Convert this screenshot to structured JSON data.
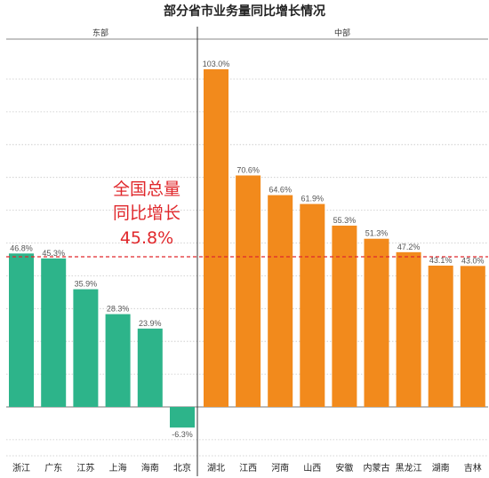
{
  "chart_data": {
    "type": "bar",
    "title": "部分省市业务量同比增长情况",
    "unit": "%",
    "ylim": [
      -10,
      110
    ],
    "grid": true,
    "groups": [
      {
        "name": "东部",
        "categories": [
          "浙江",
          "广东",
          "江苏",
          "上海",
          "海南",
          "北京"
        ],
        "values": [
          46.8,
          45.3,
          35.9,
          28.3,
          23.9,
          -6.3
        ],
        "value_labels": [
          "46.8%",
          "45.3%",
          "35.9%",
          "28.3%",
          "23.9%",
          "-6.3%"
        ]
      },
      {
        "name": "中部",
        "categories": [
          "湖北",
          "江西",
          "河南",
          "山西",
          "安徽",
          "内蒙古",
          "黑龙江",
          "湖南",
          "吉林"
        ],
        "values": [
          103.0,
          70.6,
          64.6,
          61.9,
          55.3,
          51.3,
          47.2,
          43.1,
          43.0
        ],
        "value_labels": [
          "103.0%",
          "70.6%",
          "64.6%",
          "61.9%",
          "55.3%",
          "51.3%",
          "47.2%",
          "43.1%",
          "43.0%"
        ]
      }
    ],
    "reference_line": {
      "value": 45.8,
      "label_lines": [
        "全国总量",
        "同比增长",
        "45.8%"
      ]
    },
    "colors": {
      "东部": "#2db48a",
      "中部": "#f28a1c",
      "reference": "#e0282c",
      "grid": "#c8c8c8",
      "divider": "#333333"
    }
  }
}
